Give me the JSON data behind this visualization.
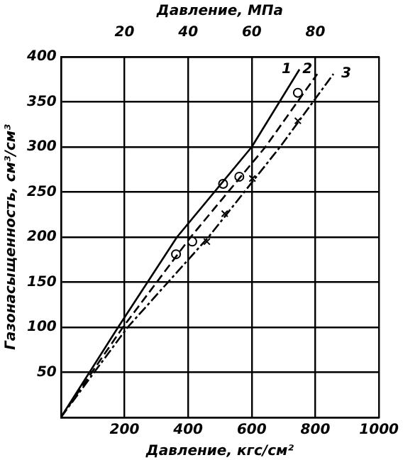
{
  "chart_data": {
    "type": "line",
    "xlabel": "Давление, кгс/см²",
    "x2label": "Давление, МПа",
    "ylabel": "Газонасыщенность, см³/см³",
    "xlim": [
      0,
      1000
    ],
    "xticks": [
      {
        "value": 0,
        "label": null
      },
      200,
      400,
      600,
      800,
      1000
    ],
    "x2lim": [
      0,
      100
    ],
    "x2ticks": [
      20,
      40,
      60,
      80
    ],
    "ylim": [
      0,
      400
    ],
    "yticks": [
      {
        "value": 0,
        "label": null
      },
      50,
      100,
      150,
      200,
      250,
      300,
      350,
      400
    ],
    "grid": true,
    "legend": false,
    "marker": "none",
    "series": [
      {
        "name": "1",
        "color": "#000000",
        "line_style": "solid",
        "x": [
          0,
          180,
          365,
          600,
          750
        ],
        "values": [
          0,
          100,
          200,
          300,
          386
        ]
      },
      {
        "name": "2",
        "color": "#000000",
        "line_style": "dashed",
        "x": [
          0,
          195,
          408,
          643,
          806
        ],
        "values": [
          0,
          100,
          200,
          300,
          381
        ]
      },
      {
        "name": "3",
        "color": "#000000",
        "line_style": "dashdot",
        "x": [
          0,
          210,
          464,
          689,
          857
        ],
        "values": [
          0,
          100,
          200,
          300,
          381
        ]
      },
      {
        "type": "scatter",
        "marker": "circle",
        "color": "#000000",
        "x": [
          362,
          413,
          510,
          561,
          745
        ],
        "values": [
          181,
          195,
          259,
          267,
          360
        ]
      },
      {
        "type": "scatter",
        "marker": "cross",
        "color": "#000000",
        "x": [
          459,
          515,
          602,
          745
        ],
        "values": [
          195,
          226,
          265,
          329
        ]
      }
    ]
  }
}
